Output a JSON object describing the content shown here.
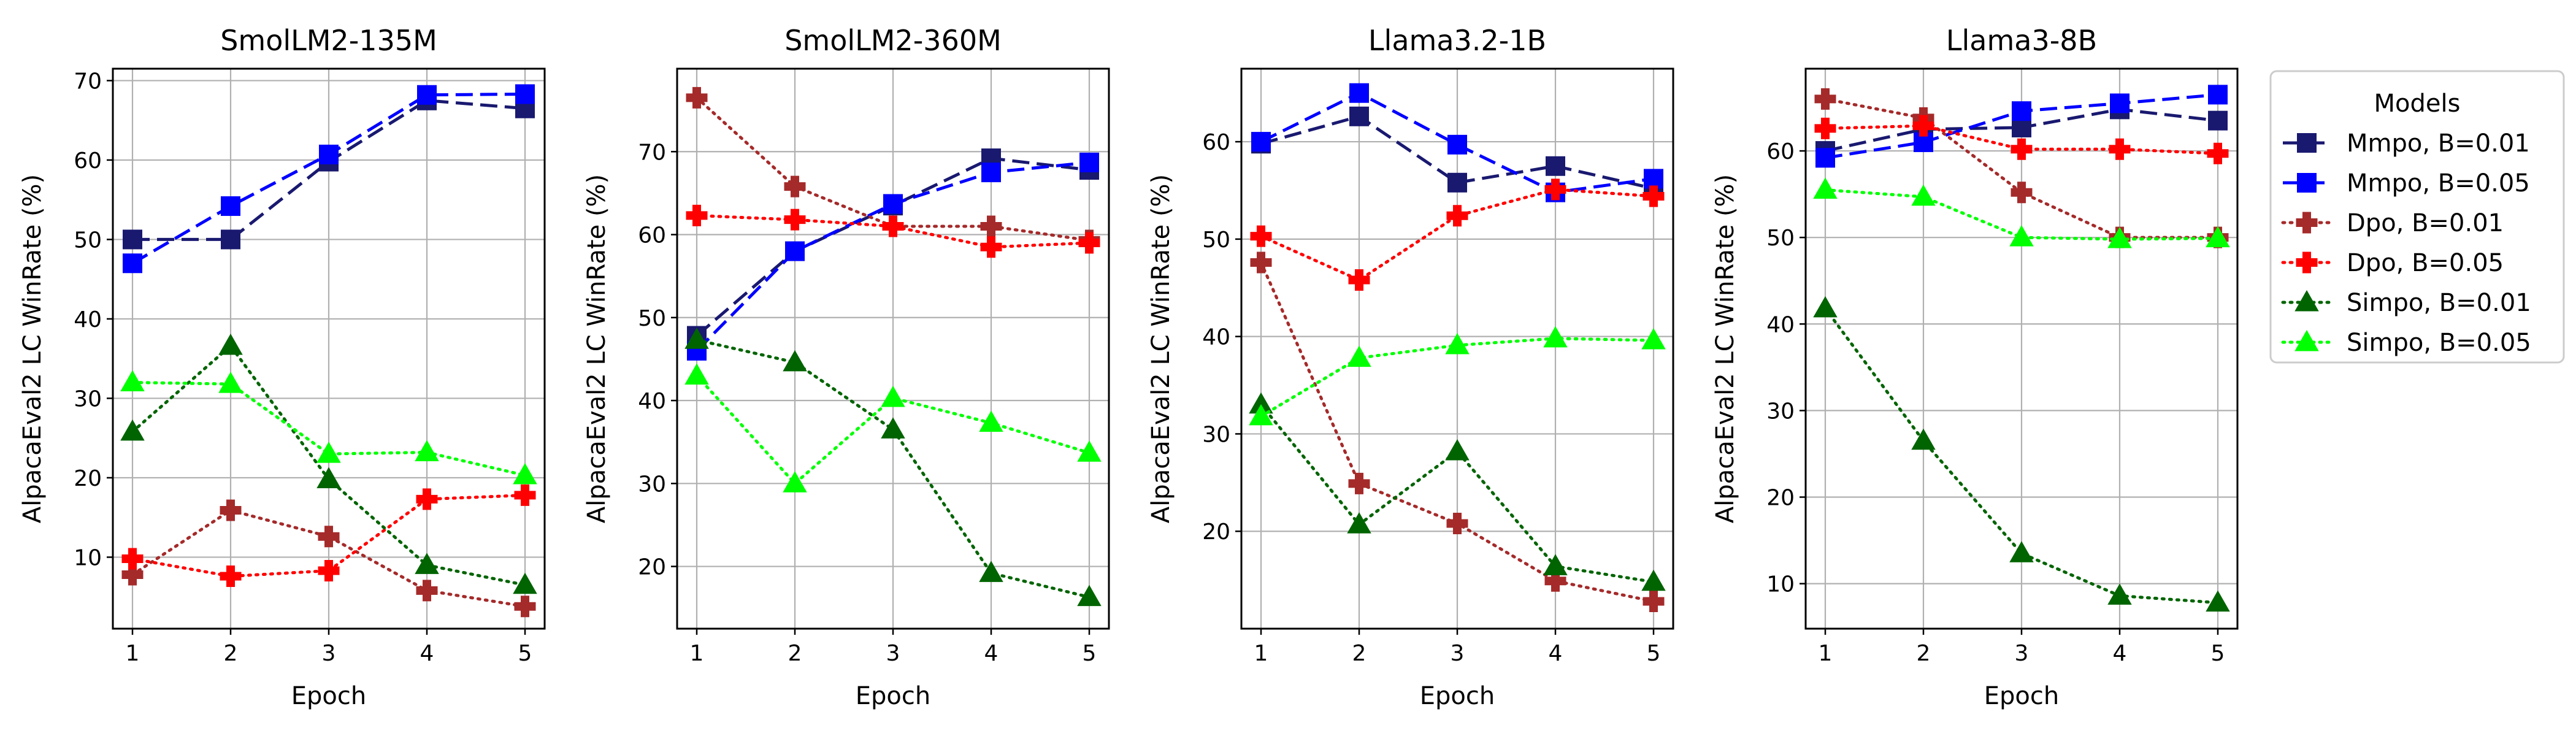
{
  "legend": {
    "title": "Models",
    "entries": [
      {
        "name": "Mmpo, B=0.01",
        "color": "#191970",
        "dash": "dashed",
        "marker": "square"
      },
      {
        "name": "Mmpo, B=0.05",
        "color": "#0000ff",
        "dash": "dashed",
        "marker": "square"
      },
      {
        "name": "Dpo, B=0.01",
        "color": "#a52a2a",
        "dash": "dotted",
        "marker": "plus"
      },
      {
        "name": "Dpo, B=0.05",
        "color": "#ff0000",
        "dash": "dotted",
        "marker": "plus"
      },
      {
        "name": "Simpo, B=0.01",
        "color": "#006400",
        "dash": "dotted",
        "marker": "triangle"
      },
      {
        "name": "Simpo, B=0.05",
        "color": "#00ff00",
        "dash": "dotted",
        "marker": "triangle"
      }
    ],
    "placement": "right, outside plots"
  },
  "chart_data": [
    {
      "type": "line",
      "title": "SmolLM2-135M",
      "xlabel": "Epoch",
      "ylabel": "AlpacaEval2 LC WinRate (%)",
      "x": [
        1,
        2,
        3,
        4,
        5
      ],
      "xticks": [
        1,
        2,
        3,
        4,
        5
      ],
      "yticks": [
        10,
        20,
        30,
        40,
        50,
        60,
        70
      ],
      "ylim": [
        1,
        71.5
      ],
      "grid": true,
      "series": [
        {
          "name": "Mmpo, B=0.01",
          "values": [
            50,
            50,
            59.8,
            67.5,
            66.5
          ]
        },
        {
          "name": "Mmpo, B=0.05",
          "values": [
            47,
            54.2,
            60.7,
            68.2,
            68.3
          ]
        },
        {
          "name": "Dpo, B=0.01",
          "values": [
            7.8,
            15.9,
            12.6,
            5.8,
            3.8
          ]
        },
        {
          "name": "Dpo, B=0.05",
          "values": [
            9.8,
            7.6,
            8.3,
            17.3,
            17.8
          ]
        },
        {
          "name": "Simpo, B=0.01",
          "values": [
            25.8,
            36.6,
            19.8,
            9.0,
            6.5
          ]
        },
        {
          "name": "Simpo, B=0.05",
          "values": [
            32,
            31.8,
            23,
            23.2,
            20.3
          ]
        }
      ]
    },
    {
      "type": "line",
      "title": "SmolLM2-360M",
      "xlabel": "Epoch",
      "ylabel": "AlpacaEval2 LC WinRate (%)",
      "x": [
        1,
        2,
        3,
        4,
        5
      ],
      "xticks": [
        1,
        2,
        3,
        4,
        5
      ],
      "yticks": [
        20,
        30,
        40,
        50,
        60,
        70
      ],
      "ylim": [
        12.5,
        80
      ],
      "grid": true,
      "series": [
        {
          "name": "Mmpo, B=0.01",
          "values": [
            47.8,
            58,
            63.5,
            69.2,
            67.8
          ]
        },
        {
          "name": "Mmpo, B=0.05",
          "values": [
            46,
            58,
            63.7,
            67.5,
            68.7
          ]
        },
        {
          "name": "Dpo, B=0.01",
          "values": [
            76.5,
            65.8,
            61,
            61,
            59.3
          ]
        },
        {
          "name": "Dpo, B=0.05",
          "values": [
            62.3,
            61.8,
            61,
            58.5,
            59
          ]
        },
        {
          "name": "Simpo, B=0.01",
          "values": [
            47.3,
            44.6,
            36.5,
            19.2,
            16.3
          ]
        },
        {
          "name": "Simpo, B=0.05",
          "values": [
            43,
            30,
            40.3,
            37.3,
            33.7
          ]
        }
      ]
    },
    {
      "type": "line",
      "title": "Llama3.2-1B",
      "xlabel": "Epoch",
      "ylabel": "AlpacaEval2 LC WinRate (%)",
      "x": [
        1,
        2,
        3,
        4,
        5
      ],
      "xticks": [
        1,
        2,
        3,
        4,
        5
      ],
      "yticks": [
        20,
        30,
        40,
        50,
        60
      ],
      "ylim": [
        10,
        67.5
      ],
      "grid": true,
      "series": [
        {
          "name": "Mmpo, B=0.01",
          "values": [
            59.8,
            62.6,
            55.8,
            57.5,
            55.2
          ]
        },
        {
          "name": "Mmpo, B=0.05",
          "values": [
            60,
            65,
            59.7,
            54.8,
            56.2
          ]
        },
        {
          "name": "Dpo, B=0.01",
          "values": [
            47.6,
            24.9,
            20.8,
            14.9,
            12.8
          ]
        },
        {
          "name": "Dpo, B=0.05",
          "values": [
            50.3,
            45.8,
            52.4,
            55.1,
            54.4
          ]
        },
        {
          "name": "Simpo, B=0.01",
          "values": [
            33,
            20.7,
            28.2,
            16.4,
            14.8
          ]
        },
        {
          "name": "Simpo, B=0.05",
          "values": [
            31.8,
            37.8,
            39.1,
            39.8,
            39.6
          ]
        }
      ]
    },
    {
      "type": "line",
      "title": "Llama3-8B",
      "xlabel": "Epoch",
      "ylabel": "AlpacaEval2 LC WinRate (%)",
      "x": [
        1,
        2,
        3,
        4,
        5
      ],
      "xticks": [
        1,
        2,
        3,
        4,
        5
      ],
      "yticks": [
        10,
        20,
        30,
        40,
        50,
        60
      ],
      "ylim": [
        4.8,
        69.5
      ],
      "grid": true,
      "series": [
        {
          "name": "Mmpo, B=0.01",
          "values": [
            60,
            62.5,
            62.7,
            64.8,
            63.5
          ]
        },
        {
          "name": "Mmpo, B=0.05",
          "values": [
            59.2,
            61,
            64.6,
            65.5,
            66.5
          ]
        },
        {
          "name": "Dpo, B=0.01",
          "values": [
            66,
            63.8,
            55.2,
            50,
            50
          ]
        },
        {
          "name": "Dpo, B=0.05",
          "values": [
            62.6,
            62.9,
            60.2,
            60.2,
            59.7
          ]
        },
        {
          "name": "Simpo, B=0.01",
          "values": [
            41.8,
            26.5,
            13.5,
            8.6,
            7.8
          ]
        },
        {
          "name": "Simpo, B=0.05",
          "values": [
            55.5,
            54.7,
            50,
            49.8,
            49.9
          ]
        }
      ]
    }
  ]
}
